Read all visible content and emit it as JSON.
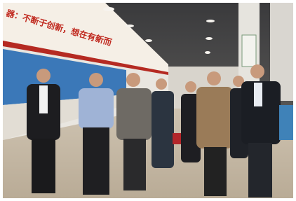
{
  "banner": {
    "text": "器：不断于创新，想在有新而"
  }
}
